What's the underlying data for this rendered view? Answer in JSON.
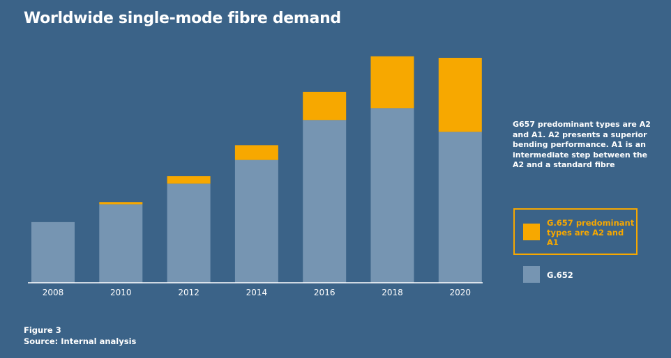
{
  "title": "Worldwide single-mode fibre demand",
  "note": "G657 predominant types are A2 and A1. A2 presents a superior bending performance. A1 is an intermediate step between the A2 and a standard fibre",
  "legend": [
    {
      "label": "G.657 predominant types are A2 and A1",
      "color": "#f7a800"
    },
    {
      "label": "G.652",
      "color": "#7695b2"
    }
  ],
  "footer": {
    "figure": "Figure 3",
    "source": "Source: Internal analysis"
  },
  "colors": {
    "background": "#3b6388",
    "g657": "#f7a800",
    "g652": "#7695b2",
    "axis": "#ffffff"
  },
  "chart_data": {
    "type": "bar",
    "stacked": true,
    "title": "Worldwide single-mode fibre demand",
    "xlabel": "",
    "ylabel": "",
    "categories": [
      "2008",
      "2010",
      "2012",
      "2014",
      "2016",
      "2018",
      "2020"
    ],
    "series": [
      {
        "name": "G.652",
        "color": "#7695b2",
        "values": [
          82,
          106,
          134,
          166,
          220,
          236,
          204
        ]
      },
      {
        "name": "G.657 predominant types are A2 and A1",
        "color": "#f7a800",
        "values": [
          0,
          3,
          10,
          20,
          38,
          70,
          100
        ]
      }
    ],
    "ylim": [
      0,
      320
    ],
    "y_axis_visible": false,
    "grid": false,
    "legend_position": "right"
  }
}
